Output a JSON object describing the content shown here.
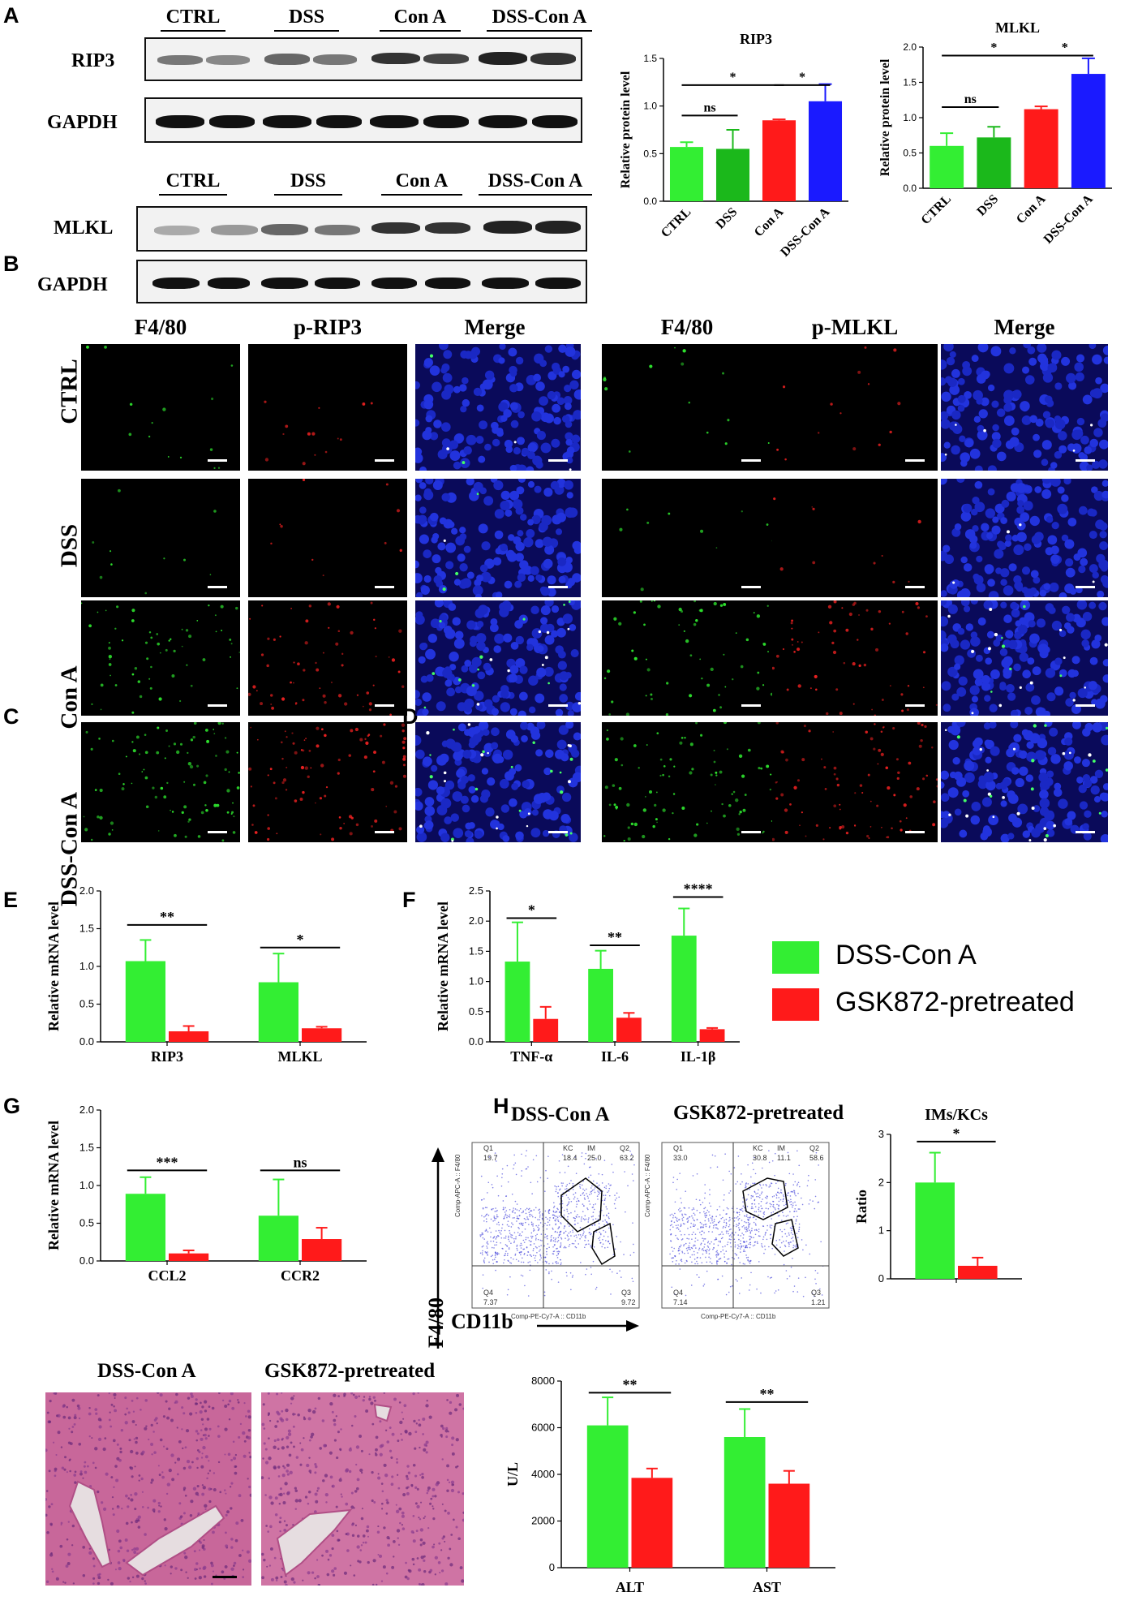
{
  "panels": {
    "A": "A",
    "B": "B",
    "C": "C",
    "D": "D",
    "E": "E",
    "F": "F",
    "G": "G",
    "H": "H"
  },
  "blot": {
    "groups1": [
      "CTRL",
      "DSS",
      "Con A",
      "DSS-Con A"
    ],
    "groups2": [
      "CTRL",
      "DSS",
      "Con A",
      "DSS-Con A"
    ],
    "row1": "RIP3",
    "row2": "GAPDH",
    "row3": "MLKL",
    "row4": "GAPDH"
  },
  "micro": {
    "cols": [
      "F4/80",
      "p-RIP3",
      "Merge",
      "F4/80",
      "p-MLKL",
      "Merge"
    ],
    "rows": [
      "CTRL",
      "DSS",
      "Con A",
      "DSS-Con A"
    ]
  },
  "legend": {
    "items": [
      {
        "label": "DSS-Con A",
        "color": "#33ee33"
      },
      {
        "label": "GSK872-pretreated",
        "color": "#ff1a1a"
      }
    ]
  },
  "flow": {
    "title1": "DSS-Con A",
    "title2": "GSK872-pretreated",
    "ylabel": "F4/80",
    "xlabel": "CD11b",
    "p1": {
      "q1": "Q1",
      "v1": "19.7",
      "kc": "KC",
      "kcv": "18.4",
      "im": "IM",
      "imv": "25.0",
      "q2": "Q2",
      "v2": "63.2",
      "q4": "Q4",
      "v4": "7.37",
      "q3": "Q3",
      "v3": "9.72"
    },
    "p2": {
      "q1": "Q1",
      "v1": "33.0",
      "kc": "KC",
      "kcv": "30.8",
      "im": "IM",
      "imv": "11.1",
      "q2": "Q2",
      "v2": "58.6",
      "q4": "Q4",
      "v4": "7.14",
      "q3": "Q3",
      "v3": "1.21"
    },
    "axis_y_small": "Comp-APC-A :: F4/80",
    "axis_x_small": "Comp-PE-Cy7-A :: CD11b"
  },
  "he": {
    "title1": "DSS-Con A",
    "title2": "GSK872-pretreated"
  },
  "colors": {
    "green": "#33ee33",
    "red": "#ff1a1a",
    "blue": "#1a1aff",
    "darkgreen": "#1bb81b"
  },
  "chart_data": [
    {
      "id": "A-RIP3",
      "type": "bar",
      "title": "RIP3",
      "ylabel": "Relative protein level",
      "categories": [
        "CTRL",
        "DSS",
        "Con A",
        "DSS-Con A"
      ],
      "values": [
        0.57,
        0.55,
        0.85,
        1.05
      ],
      "errors": [
        0.05,
        0.2,
        0.01,
        0.18
      ],
      "colors": [
        "#33ee33",
        "#1bb81b",
        "#ff1a1a",
        "#1a1aff"
      ],
      "ylim": [
        0,
        1.5
      ],
      "yticks": [
        "0.0",
        "0.5",
        "1.0",
        "1.5"
      ],
      "sig": [
        {
          "from": 0,
          "to": 1,
          "label": "ns",
          "level": 0.9
        },
        {
          "from": 0,
          "to": 2,
          "label": "*",
          "level": 1.22
        },
        {
          "from": 2,
          "to": 3,
          "label": "*",
          "level": 1.22
        }
      ]
    },
    {
      "id": "A-MLKL",
      "type": "bar",
      "title": "MLKL",
      "ylabel": "Relative protein level",
      "categories": [
        "CTRL",
        "DSS",
        "Con A",
        "DSS-Con A"
      ],
      "values": [
        0.6,
        0.72,
        1.12,
        1.62
      ],
      "errors": [
        0.18,
        0.15,
        0.04,
        0.22
      ],
      "colors": [
        "#33ee33",
        "#1bb81b",
        "#ff1a1a",
        "#1a1aff"
      ],
      "ylim": [
        0,
        2.0
      ],
      "yticks": [
        "0.0",
        "0.5",
        "1.0",
        "1.5",
        "2.0"
      ],
      "sig": [
        {
          "from": 0,
          "to": 1,
          "label": "ns",
          "level": 1.15
        },
        {
          "from": 0,
          "to": 2,
          "label": "*",
          "level": 1.88
        },
        {
          "from": 2,
          "to": 3,
          "label": "*",
          "level": 1.88
        }
      ]
    },
    {
      "id": "C",
      "type": "bar",
      "ylabel": "Relative mRNA level",
      "categories": [
        "RIP3",
        "MLKL"
      ],
      "series": [
        {
          "name": "DSS-Con A",
          "values": [
            1.07,
            0.79
          ],
          "errors": [
            0.28,
            0.38
          ]
        },
        {
          "name": "GSK872-pretreated",
          "values": [
            0.14,
            0.18
          ],
          "errors": [
            0.07,
            0.02
          ]
        }
      ],
      "ylim": [
        0,
        2.0
      ],
      "yticks": [
        "0.0",
        "0.5",
        "1.0",
        "1.5",
        "2.0"
      ],
      "sig": [
        {
          "cat": 0,
          "label": "**",
          "level": 1.55
        },
        {
          "cat": 1,
          "label": "*",
          "level": 1.25
        }
      ]
    },
    {
      "id": "D",
      "type": "bar",
      "ylabel": "Relative mRNA level",
      "categories": [
        "TNF-α",
        "IL-6",
        "IL-1β"
      ],
      "series": [
        {
          "name": "DSS-Con A",
          "values": [
            1.33,
            1.21,
            1.76
          ],
          "errors": [
            0.65,
            0.3,
            0.45
          ]
        },
        {
          "name": "GSK872-pretreated",
          "values": [
            0.38,
            0.4,
            0.21
          ],
          "errors": [
            0.2,
            0.08,
            0.02
          ]
        }
      ],
      "ylim": [
        0,
        2.5
      ],
      "yticks": [
        "0.0",
        "0.5",
        "1.0",
        "1.5",
        "2.0",
        "2.5"
      ],
      "sig": [
        {
          "cat": 0,
          "label": "*",
          "level": 2.05
        },
        {
          "cat": 1,
          "label": "**",
          "level": 1.6
        },
        {
          "cat": 2,
          "label": "****",
          "level": 2.4
        }
      ]
    },
    {
      "id": "E",
      "type": "bar",
      "ylabel": "Relative mRNA level",
      "categories": [
        "CCL2",
        "CCR2"
      ],
      "series": [
        {
          "name": "DSS-Con A",
          "values": [
            0.89,
            0.6
          ],
          "errors": [
            0.22,
            0.48
          ]
        },
        {
          "name": "GSK872-pretreated",
          "values": [
            0.1,
            0.29
          ],
          "errors": [
            0.04,
            0.15
          ]
        }
      ],
      "ylim": [
        0,
        2.0
      ],
      "yticks": [
        "0.0",
        "0.5",
        "1.0",
        "1.5",
        "2.0"
      ],
      "sig": [
        {
          "cat": 0,
          "label": "***",
          "level": 1.2
        },
        {
          "cat": 1,
          "label": "ns",
          "level": 1.2
        }
      ]
    },
    {
      "id": "F-ratio",
      "type": "bar",
      "title": "IMs/KCs",
      "ylabel": "Ratio",
      "categories": [
        ""
      ],
      "series": [
        {
          "name": "DSS-Con A",
          "values": [
            2.0
          ],
          "errors": [
            0.62
          ]
        },
        {
          "name": "GSK872-pretreated",
          "values": [
            0.27
          ],
          "errors": [
            0.17
          ]
        }
      ],
      "ylim": [
        0,
        3
      ],
      "yticks": [
        "0",
        "1",
        "2",
        "3"
      ],
      "sig": [
        {
          "cat": 0,
          "label": "*",
          "level": 2.85
        }
      ]
    },
    {
      "id": "H",
      "type": "bar",
      "ylabel": "U/L",
      "categories": [
        "ALT",
        "AST"
      ],
      "series": [
        {
          "name": "DSS-Con A",
          "values": [
            6100,
            5600
          ],
          "errors": [
            1200,
            1200
          ]
        },
        {
          "name": "GSK872-pretreated",
          "values": [
            3850,
            3600
          ],
          "errors": [
            400,
            550
          ]
        }
      ],
      "ylim": [
        0,
        8000
      ],
      "yticks": [
        "0",
        "2000",
        "4000",
        "6000",
        "8000"
      ],
      "sig": [
        {
          "cat": 0,
          "label": "**",
          "level": 7500
        },
        {
          "cat": 1,
          "label": "**",
          "level": 7100
        }
      ]
    }
  ]
}
